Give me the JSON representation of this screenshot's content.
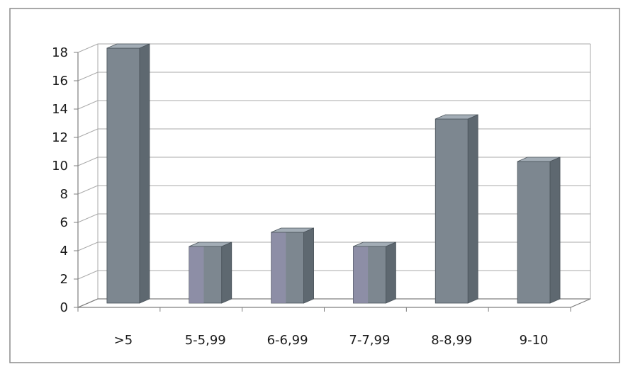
{
  "chart_data": {
    "type": "bar",
    "style": "3d-column",
    "categories": [
      ">5",
      "5-5,99",
      "6-6,99",
      "7-7,99",
      "8-8,99",
      "9-10"
    ],
    "values": [
      18,
      4,
      5,
      4,
      13,
      10
    ],
    "ylim": [
      0,
      18
    ],
    "yticks": [
      0,
      2,
      4,
      6,
      8,
      10,
      12,
      14,
      16,
      18
    ],
    "grid": true,
    "legend": "none",
    "colors": {
      "bar_front": "#7d8790",
      "bar_side": "#5e6870",
      "bar_top": "#a3adb6",
      "bar_tint_alt": "#9b94b8",
      "grid": "#a9a9a9",
      "axis": "#7f7f7f",
      "border": "#8c8c8c",
      "text": "#1a1a1a"
    }
  }
}
